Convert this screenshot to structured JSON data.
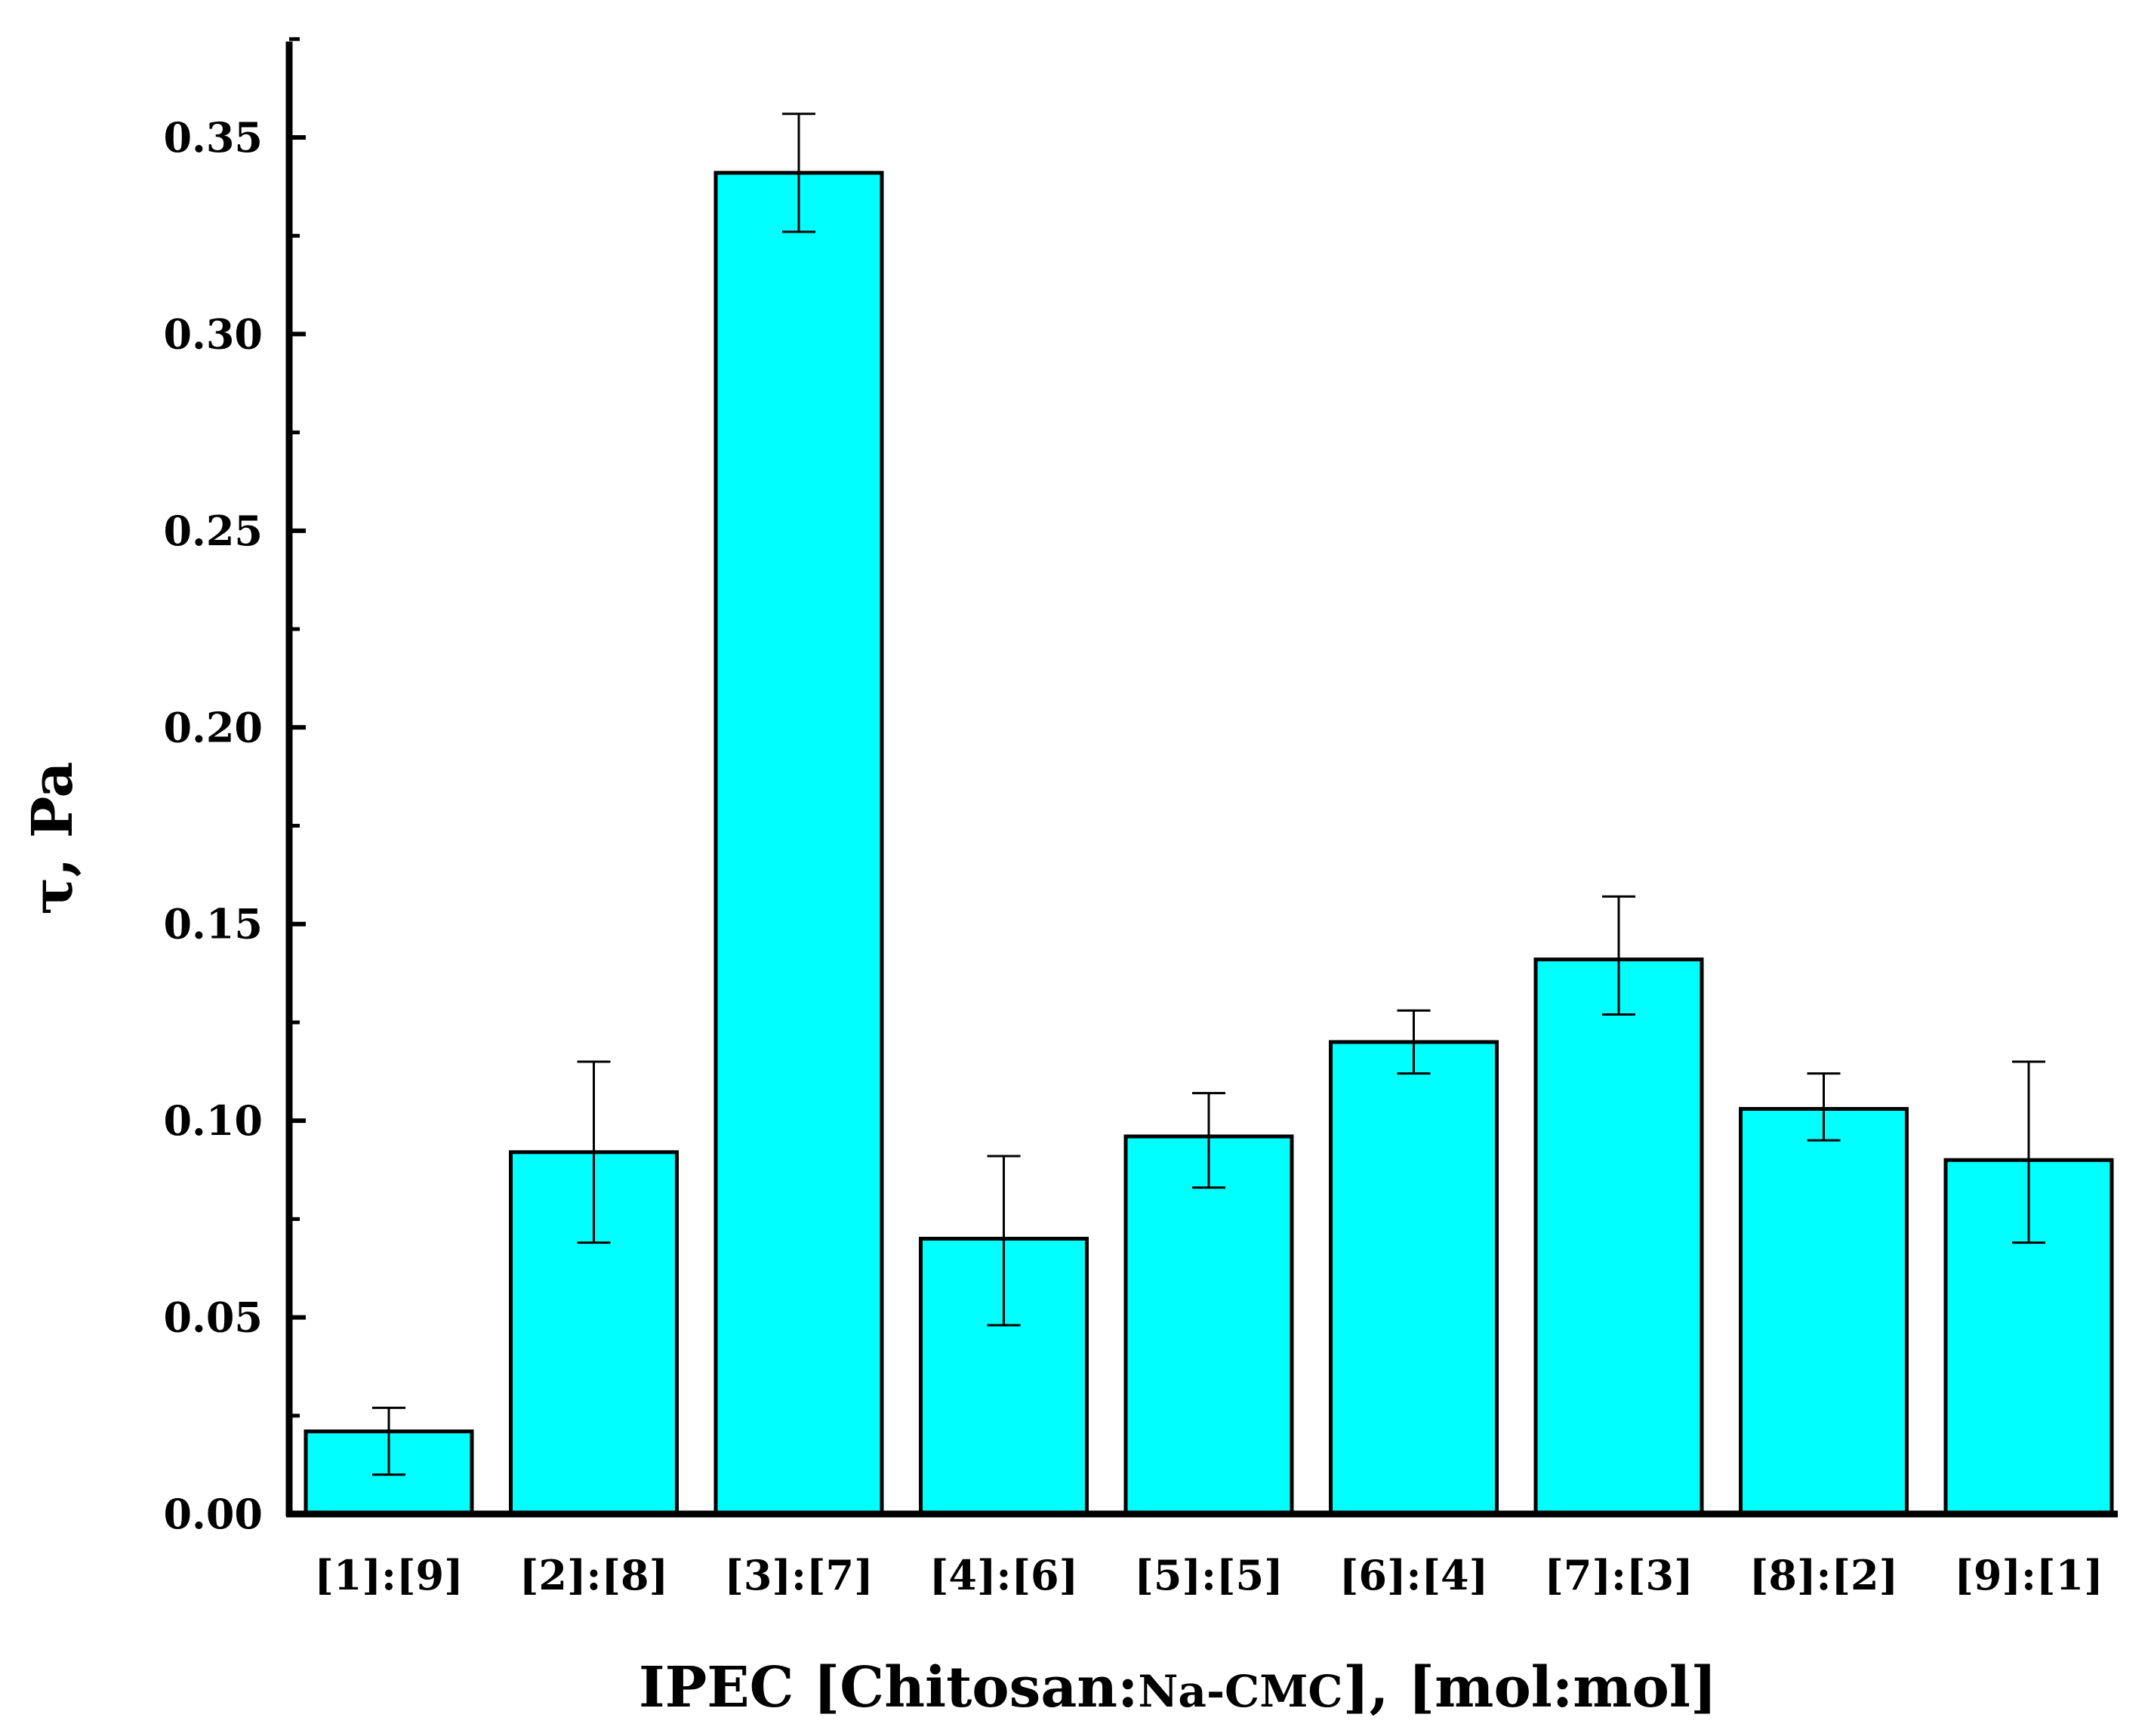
{
  "chart_data": {
    "type": "bar",
    "categories": [
      "[1]:[9]",
      "[2]:[8]",
      "[3]:[7]",
      "[4]:[6]",
      "[5]:[5]",
      "[6]:[4]",
      "[7]:[3]",
      "[8]:[2]",
      "[9]:[1]"
    ],
    "values": [
      0.021,
      0.092,
      0.341,
      0.07,
      0.096,
      0.12,
      0.141,
      0.103,
      0.09
    ],
    "error_upper": [
      0.027,
      0.115,
      0.356,
      0.091,
      0.107,
      0.128,
      0.157,
      0.112,
      0.115
    ],
    "error_lower": [
      0.01,
      0.069,
      0.326,
      0.048,
      0.083,
      0.112,
      0.127,
      0.095,
      0.069
    ],
    "ylim": [
      0,
      0.375
    ],
    "yticks": [
      "0.00",
      "0.05",
      "0.10",
      "0.15",
      "0.20",
      "0.25",
      "0.30",
      "0.35"
    ],
    "ylabel": "τ, Pa",
    "xlabel": {
      "prefix": "IPEC [Chitosan:",
      "small": "Na-CMC",
      "suffix": "], [mol:mol]"
    },
    "bar_color": "#00FFFF",
    "bar_edge_color": "#000000",
    "grid": false,
    "legend": false
  }
}
